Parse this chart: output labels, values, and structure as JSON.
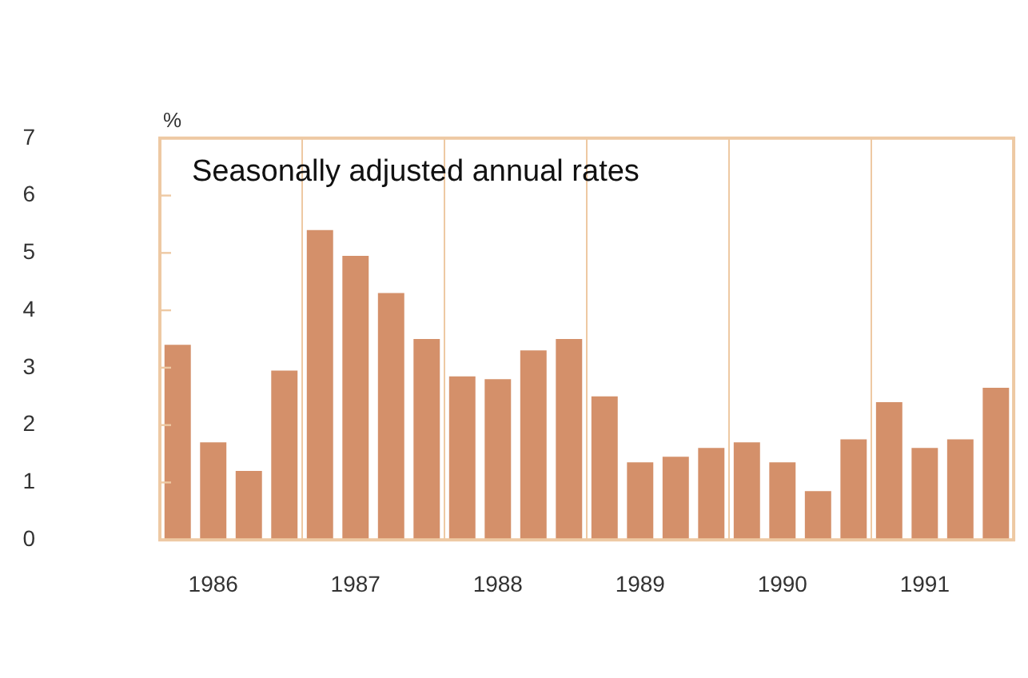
{
  "chart_data": {
    "type": "bar",
    "subtitle": "Seasonally adjusted annual rates",
    "ylabel": "%",
    "categories": [
      null,
      "1986",
      null,
      null,
      null,
      "1987",
      null,
      null,
      null,
      "1988",
      null,
      null,
      null,
      "1989",
      null,
      null,
      null,
      "1990",
      null,
      null,
      null,
      "1991",
      null,
      null
    ],
    "values": [
      3.4,
      1.7,
      1.2,
      2.95,
      5.4,
      4.95,
      4.3,
      3.5,
      2.85,
      2.8,
      3.3,
      3.5,
      2.5,
      1.35,
      1.45,
      1.6,
      1.7,
      1.35,
      0.85,
      1.75,
      2.4,
      1.6,
      1.75,
      2.65
    ],
    "color": "#d4906a",
    "ylim": [
      0,
      7
    ],
    "yticks": [
      0,
      1,
      2,
      3,
      4,
      5,
      6,
      7
    ],
    "grid": "x",
    "legend": false
  }
}
